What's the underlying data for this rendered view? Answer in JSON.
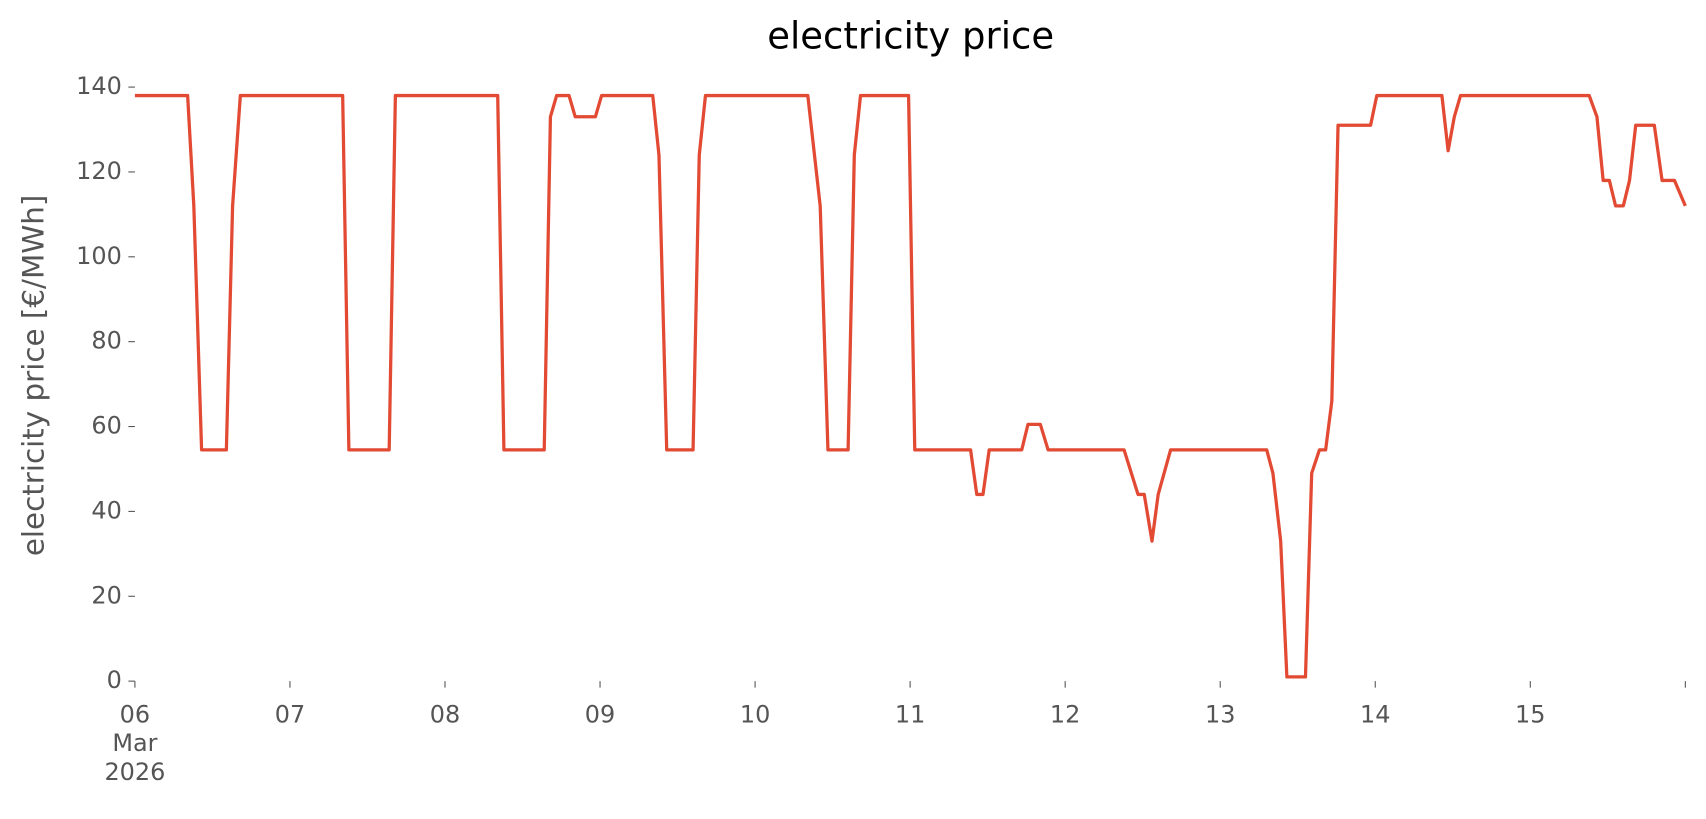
{
  "chart_data": {
    "type": "line",
    "title": "electricity price",
    "ylabel": "electricity price [€/MWh]",
    "x": [
      0,
      0.34,
      0.38,
      0.43,
      0.59,
      0.63,
      0.68,
      1.34,
      1.38,
      1.64,
      1.68,
      2.34,
      2.38,
      2.64,
      2.68,
      2.72,
      2.8,
      2.84,
      2.97,
      3.01,
      3.34,
      3.38,
      3.43,
      3.6,
      3.64,
      3.68,
      4.34,
      4.42,
      4.47,
      4.6,
      4.64,
      4.68,
      4.99,
      5.03,
      5.39,
      5.43,
      5.47,
      5.51,
      5.72,
      5.76,
      5.84,
      5.89,
      6.38,
      6.47,
      6.51,
      6.56,
      6.6,
      6.68,
      7.3,
      7.34,
      7.39,
      7.43,
      7.55,
      7.59,
      7.64,
      7.68,
      7.72,
      7.76,
      7.97,
      8.01,
      8.43,
      8.47,
      8.51,
      8.55,
      9.38,
      9.43,
      9.47,
      9.51,
      9.55,
      9.6,
      9.64,
      9.68,
      9.8,
      9.85,
      9.93,
      10
    ],
    "series": [
      {
        "name": "electricity price",
        "color": "#e24a33",
        "values": [
          138,
          138,
          112,
          54.5,
          54.5,
          112,
          138,
          138,
          54.5,
          54.5,
          138,
          138,
          54.5,
          54.5,
          133,
          138,
          138,
          133,
          133,
          138,
          138,
          124,
          54.5,
          54.5,
          124,
          138,
          138,
          112,
          54.5,
          54.5,
          124,
          138,
          138,
          54.5,
          54.5,
          44,
          44,
          54.5,
          54.5,
          60.5,
          60.5,
          54.5,
          54.5,
          44,
          44,
          33,
          44,
          54.5,
          54.5,
          49,
          33,
          1,
          1,
          49,
          54.5,
          54.5,
          66,
          131,
          131,
          138,
          138,
          125,
          133,
          138,
          138,
          133,
          118,
          118,
          112,
          112,
          118,
          131,
          131,
          118,
          118,
          112
        ]
      }
    ],
    "xlim": [
      0,
      10
    ],
    "xticks": [
      {
        "value": 0,
        "label": "06\nMar\n2026"
      },
      {
        "value": 1,
        "label": "07"
      },
      {
        "value": 2,
        "label": "08"
      },
      {
        "value": 3,
        "label": "09"
      },
      {
        "value": 4,
        "label": "10"
      },
      {
        "value": 5,
        "label": "11"
      },
      {
        "value": 6,
        "label": "12"
      },
      {
        "value": 7,
        "label": "13"
      },
      {
        "value": 8,
        "label": "14"
      },
      {
        "value": 9,
        "label": "15"
      },
      {
        "value": 10,
        "label": null
      }
    ],
    "ylim": [
      0,
      140
    ],
    "yticks": [
      0,
      20,
      40,
      60,
      80,
      100,
      120,
      140
    ],
    "grid": false
  }
}
